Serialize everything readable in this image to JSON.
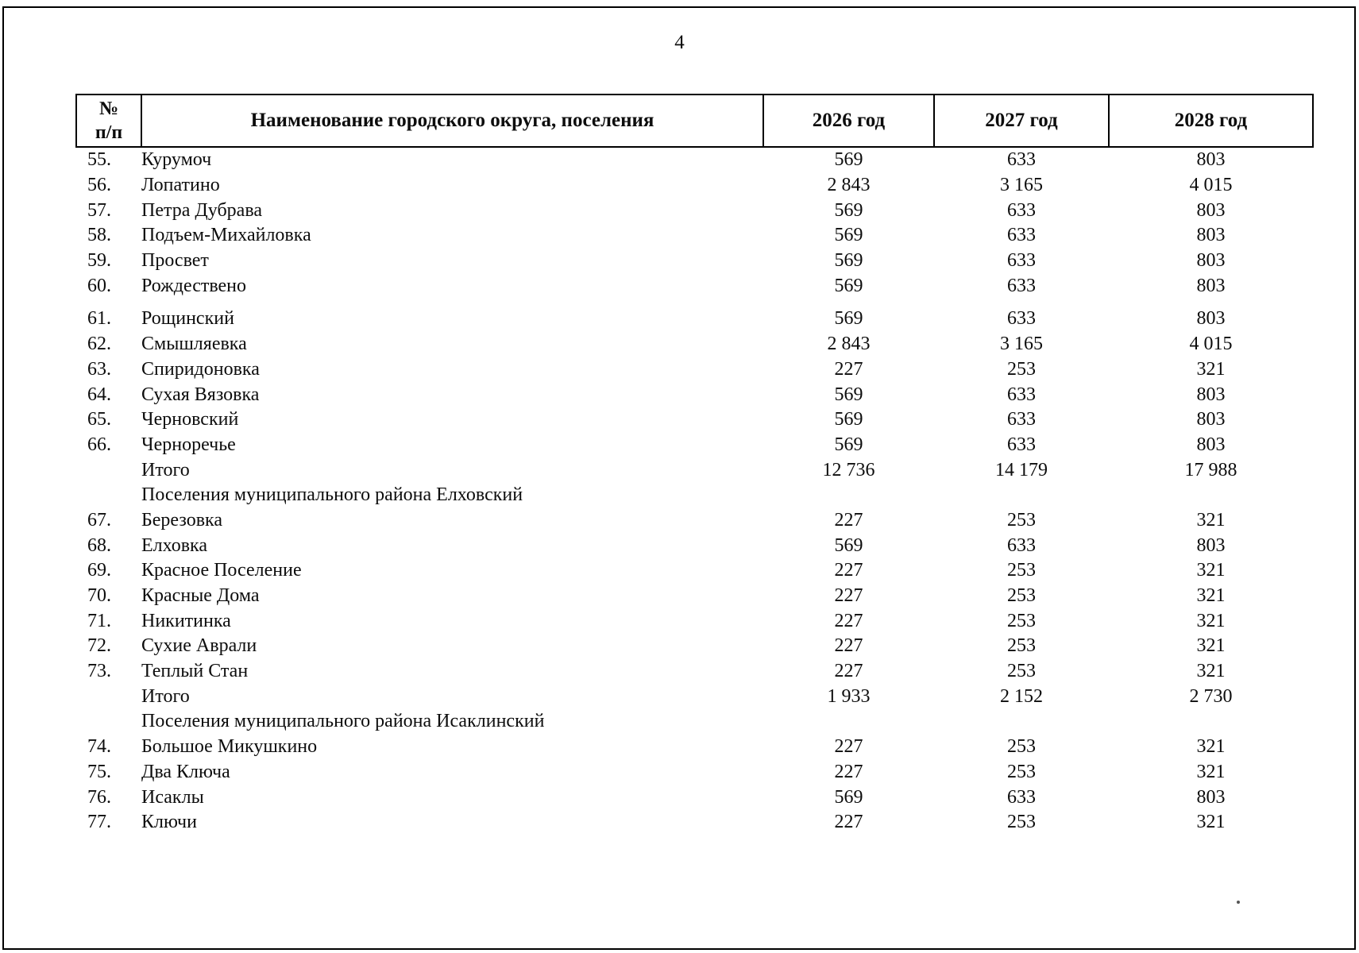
{
  "page": {
    "number": "4"
  },
  "table": {
    "headers": {
      "num_line1": "№",
      "num_line2": "п/п",
      "name": "Наименование городского округа, поселения",
      "y2026": "2026 год",
      "y2027": "2027 год",
      "y2028": "2028 год"
    },
    "rows": [
      {
        "type": "data",
        "num": "55.",
        "name": "Курумоч",
        "v2026": "569",
        "v2027": "633",
        "v2028": "803"
      },
      {
        "type": "data",
        "num": "56.",
        "name": "Лопатино",
        "v2026": "2 843",
        "v2027": "3 165",
        "v2028": "4 015"
      },
      {
        "type": "data",
        "num": "57.",
        "name": "Петра Дубрава",
        "v2026": "569",
        "v2027": "633",
        "v2028": "803"
      },
      {
        "type": "data",
        "num": "58.",
        "name": "Подъем-Михайловка",
        "v2026": "569",
        "v2027": "633",
        "v2028": "803"
      },
      {
        "type": "data",
        "num": "59.",
        "name": "Просвет",
        "v2026": "569",
        "v2027": "633",
        "v2028": "803"
      },
      {
        "type": "data",
        "num": "60.",
        "name": "Рождествено",
        "v2026": "569",
        "v2027": "633",
        "v2028": "803"
      },
      {
        "type": "data",
        "num": "61.",
        "name": "Рощинский",
        "v2026": "569",
        "v2027": "633",
        "v2028": "803",
        "gap_before": true
      },
      {
        "type": "data",
        "num": "62.",
        "name": "Смышляевка",
        "v2026": "2 843",
        "v2027": "3 165",
        "v2028": "4 015"
      },
      {
        "type": "data",
        "num": "63.",
        "name": "Спиридоновка",
        "v2026": "227",
        "v2027": "253",
        "v2028": "321"
      },
      {
        "type": "data",
        "num": "64.",
        "name": "Сухая Вязовка",
        "v2026": "569",
        "v2027": "633",
        "v2028": "803"
      },
      {
        "type": "data",
        "num": "65.",
        "name": "Черновский",
        "v2026": "569",
        "v2027": "633",
        "v2028": "803"
      },
      {
        "type": "data",
        "num": "66.",
        "name": "Черноречье",
        "v2026": "569",
        "v2027": "633",
        "v2028": "803"
      },
      {
        "type": "total",
        "num": "",
        "name": "Итого",
        "v2026": "12 736",
        "v2027": "14 179",
        "v2028": "17 988"
      },
      {
        "type": "section",
        "num": "",
        "name": "Поселения муниципального района Елховский",
        "v2026": "",
        "v2027": "",
        "v2028": ""
      },
      {
        "type": "data",
        "num": "67.",
        "name": "Березовка",
        "v2026": "227",
        "v2027": "253",
        "v2028": "321"
      },
      {
        "type": "data",
        "num": "68.",
        "name": "Елховка",
        "v2026": "569",
        "v2027": "633",
        "v2028": "803"
      },
      {
        "type": "data",
        "num": "69.",
        "name": "Красное Поселение",
        "v2026": "227",
        "v2027": "253",
        "v2028": "321"
      },
      {
        "type": "data",
        "num": "70.",
        "name": "Красные Дома",
        "v2026": "227",
        "v2027": "253",
        "v2028": "321"
      },
      {
        "type": "data",
        "num": "71.",
        "name": "Никитинка",
        "v2026": "227",
        "v2027": "253",
        "v2028": "321"
      },
      {
        "type": "data",
        "num": "72.",
        "name": "Сухие Аврали",
        "v2026": "227",
        "v2027": "253",
        "v2028": "321"
      },
      {
        "type": "data",
        "num": "73.",
        "name": "Теплый Стан",
        "v2026": "227",
        "v2027": "253",
        "v2028": "321"
      },
      {
        "type": "total",
        "num": "",
        "name": "Итого",
        "v2026": "1 933",
        "v2027": "2 152",
        "v2028": "2 730"
      },
      {
        "type": "section",
        "num": "",
        "name": "Поселения муниципального района Исаклинский",
        "v2026": "",
        "v2027": "",
        "v2028": ""
      },
      {
        "type": "data",
        "num": "74.",
        "name": "Большое Микушкино",
        "v2026": "227",
        "v2027": "253",
        "v2028": "321"
      },
      {
        "type": "data",
        "num": "75.",
        "name": "Два Ключа",
        "v2026": "227",
        "v2027": "253",
        "v2028": "321"
      },
      {
        "type": "data",
        "num": "76.",
        "name": "Исаклы",
        "v2026": "569",
        "v2027": "633",
        "v2028": "803"
      },
      {
        "type": "data",
        "num": "77.",
        "name": "Ключи",
        "v2026": "227",
        "v2027": "253",
        "v2028": "321"
      }
    ]
  }
}
